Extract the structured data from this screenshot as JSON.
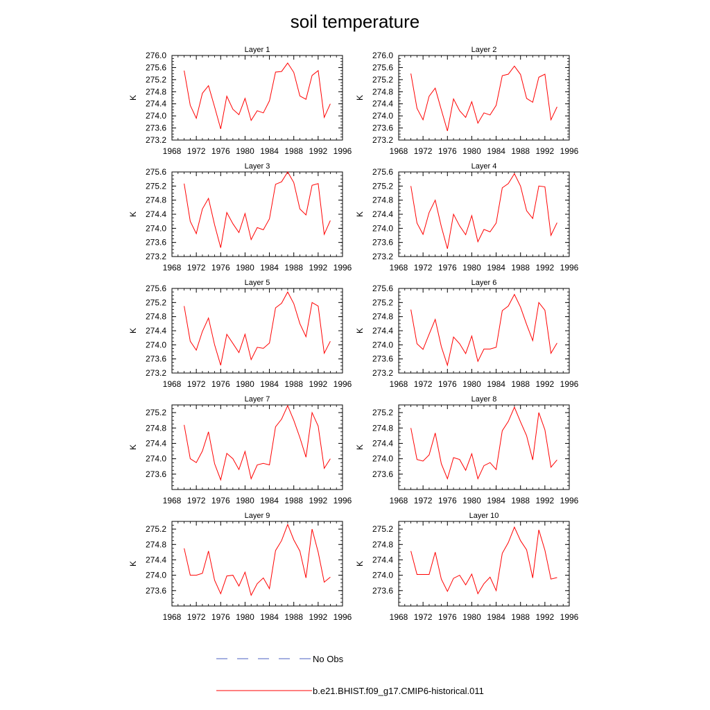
{
  "title": "soil temperature",
  "legend": {
    "placement": "bottom-center",
    "entries": [
      {
        "label": "No Obs",
        "color": "#4a5fc1",
        "style": "dashed"
      },
      {
        "label": "b.e21.BHIST.f09_g17.CMIP6-historical.011",
        "color": "#ff0000",
        "style": "solid"
      }
    ]
  },
  "chart_data": [
    {
      "type": "line",
      "title": "Layer 1",
      "ylabel": "K",
      "xlim": [
        1968,
        1996
      ],
      "ylim": [
        273.2,
        276.0
      ],
      "xticks": [
        "1968",
        "1972",
        "1976",
        "1980",
        "1984",
        "1988",
        "1992",
        "1996"
      ],
      "yticks": [
        "273.2",
        "273.6",
        "274.0",
        "274.4",
        "274.8",
        "275.2",
        "275.6",
        "276.0"
      ],
      "series": [
        {
          "name": "b.e21.BHIST.f09_g17.CMIP6-historical.011",
          "color": "#ff0000",
          "x": [
            1970,
            1971,
            1972,
            1973,
            1974,
            1975,
            1976,
            1977,
            1978,
            1979,
            1980,
            1981,
            1982,
            1983,
            1984,
            1985,
            1986,
            1987,
            1988,
            1989,
            1990,
            1991,
            1992,
            1993,
            1994
          ],
          "y": [
            275.5,
            274.35,
            273.92,
            274.75,
            275.0,
            274.3,
            273.57,
            274.65,
            274.22,
            274.04,
            274.58,
            273.85,
            274.17,
            274.1,
            274.5,
            275.45,
            275.47,
            275.75,
            275.44,
            274.66,
            274.55,
            275.34,
            275.5,
            273.95,
            274.4
          ]
        }
      ]
    },
    {
      "type": "line",
      "title": "Layer 2",
      "ylabel": "K",
      "xlim": [
        1968,
        1996
      ],
      "ylim": [
        273.2,
        276.0
      ],
      "xticks": [
        "1968",
        "1972",
        "1976",
        "1980",
        "1984",
        "1988",
        "1992",
        "1996"
      ],
      "yticks": [
        "273.2",
        "273.6",
        "274.0",
        "274.4",
        "274.8",
        "275.2",
        "275.6",
        "276.0"
      ],
      "series": [
        {
          "name": "b.e21.BHIST.f09_g17.CMIP6-historical.011",
          "color": "#ff0000",
          "x": [
            1970,
            1971,
            1972,
            1973,
            1974,
            1975,
            1976,
            1977,
            1978,
            1979,
            1980,
            1981,
            1982,
            1983,
            1984,
            1985,
            1986,
            1987,
            1988,
            1989,
            1990,
            1991,
            1992,
            1993,
            1994
          ],
          "y": [
            275.4,
            274.25,
            273.87,
            274.65,
            274.92,
            274.2,
            273.5,
            274.56,
            274.17,
            273.95,
            274.47,
            273.76,
            274.1,
            274.03,
            274.35,
            275.33,
            275.38,
            275.65,
            275.37,
            274.58,
            274.45,
            275.28,
            275.38,
            273.87,
            274.3
          ]
        }
      ]
    },
    {
      "type": "line",
      "title": "Layer 3",
      "ylabel": "K",
      "xlim": [
        1968,
        1996
      ],
      "ylim": [
        273.2,
        275.6
      ],
      "xticks": [
        "1968",
        "1972",
        "1976",
        "1980",
        "1984",
        "1988",
        "1992",
        "1996"
      ],
      "yticks": [
        "273.2",
        "273.6",
        "274.0",
        "274.4",
        "274.8",
        "275.2",
        "275.6"
      ],
      "series": [
        {
          "name": "b.e21.BHIST.f09_g17.CMIP6-historical.011",
          "color": "#ff0000",
          "x": [
            1970,
            1971,
            1972,
            1973,
            1974,
            1975,
            1976,
            1977,
            1978,
            1979,
            1980,
            1981,
            1982,
            1983,
            1984,
            1985,
            1986,
            1987,
            1988,
            1989,
            1990,
            1991,
            1992,
            1993,
            1994
          ],
          "y": [
            275.27,
            274.2,
            273.85,
            274.55,
            274.85,
            274.1,
            273.45,
            274.45,
            274.13,
            273.88,
            274.42,
            273.68,
            274.02,
            273.96,
            274.27,
            275.25,
            275.32,
            275.6,
            275.3,
            274.55,
            274.38,
            275.22,
            275.27,
            273.83,
            274.22
          ]
        }
      ]
    },
    {
      "type": "line",
      "title": "Layer 4",
      "ylabel": "K",
      "xlim": [
        1968,
        1996
      ],
      "ylim": [
        273.2,
        275.6
      ],
      "xticks": [
        "1968",
        "1972",
        "1976",
        "1980",
        "1984",
        "1988",
        "1992",
        "1996"
      ],
      "yticks": [
        "273.2",
        "273.6",
        "274.0",
        "274.4",
        "274.8",
        "275.2",
        "275.6"
      ],
      "series": [
        {
          "name": "b.e21.BHIST.f09_g17.CMIP6-historical.011",
          "color": "#ff0000",
          "x": [
            1970,
            1971,
            1972,
            1973,
            1974,
            1975,
            1976,
            1977,
            1978,
            1979,
            1980,
            1981,
            1982,
            1983,
            1984,
            1985,
            1986,
            1987,
            1988,
            1989,
            1990,
            1991,
            1992,
            1993,
            1994
          ],
          "y": [
            275.2,
            274.15,
            273.83,
            274.45,
            274.8,
            274.05,
            273.42,
            274.4,
            274.07,
            273.82,
            274.36,
            273.62,
            273.97,
            273.9,
            274.15,
            275.15,
            275.27,
            275.55,
            275.2,
            274.5,
            274.28,
            275.2,
            275.18,
            273.8,
            274.16
          ]
        }
      ]
    },
    {
      "type": "line",
      "title": "Layer 5",
      "ylabel": "K",
      "xlim": [
        1968,
        1996
      ],
      "ylim": [
        273.2,
        275.6
      ],
      "xticks": [
        "1968",
        "1972",
        "1976",
        "1980",
        "1984",
        "1988",
        "1992",
        "1996"
      ],
      "yticks": [
        "273.2",
        "273.6",
        "274.0",
        "274.4",
        "274.8",
        "275.2",
        "275.6"
      ],
      "series": [
        {
          "name": "b.e21.BHIST.f09_g17.CMIP6-historical.011",
          "color": "#ff0000",
          "x": [
            1970,
            1971,
            1972,
            1973,
            1974,
            1975,
            1976,
            1977,
            1978,
            1979,
            1980,
            1981,
            1982,
            1983,
            1984,
            1985,
            1986,
            1987,
            1988,
            1989,
            1990,
            1991,
            1992,
            1993,
            1994
          ],
          "y": [
            275.1,
            274.1,
            273.85,
            274.38,
            274.76,
            274.0,
            273.42,
            274.3,
            274.04,
            273.78,
            274.3,
            273.58,
            273.93,
            273.9,
            274.05,
            275.05,
            275.18,
            275.5,
            275.17,
            274.6,
            274.23,
            275.2,
            275.1,
            273.76,
            274.1
          ]
        }
      ]
    },
    {
      "type": "line",
      "title": "Layer 6",
      "ylabel": "K",
      "xlim": [
        1968,
        1996
      ],
      "ylim": [
        273.2,
        275.6
      ],
      "xticks": [
        "1968",
        "1972",
        "1976",
        "1980",
        "1984",
        "1988",
        "1992",
        "1996"
      ],
      "yticks": [
        "273.2",
        "273.6",
        "274.0",
        "274.4",
        "274.8",
        "275.2",
        "275.6"
      ],
      "series": [
        {
          "name": "b.e21.BHIST.f09_g17.CMIP6-historical.011",
          "color": "#ff0000",
          "x": [
            1970,
            1971,
            1972,
            1973,
            1974,
            1975,
            1976,
            1977,
            1978,
            1979,
            1980,
            1981,
            1982,
            1983,
            1984,
            1985,
            1986,
            1987,
            1988,
            1989,
            1990,
            1991,
            1992,
            1993,
            1994
          ],
          "y": [
            275.0,
            274.03,
            273.87,
            274.3,
            274.72,
            273.95,
            273.42,
            274.22,
            274.03,
            273.75,
            274.25,
            273.53,
            273.88,
            273.88,
            273.93,
            274.97,
            275.1,
            275.43,
            275.07,
            274.58,
            274.12,
            275.2,
            274.98,
            273.76,
            274.05
          ]
        }
      ]
    },
    {
      "type": "line",
      "title": "Layer 7",
      "ylabel": "K",
      "xlim": [
        1968,
        1996
      ],
      "ylim": [
        273.2,
        275.4
      ],
      "xticks": [
        "1968",
        "1972",
        "1976",
        "1980",
        "1984",
        "1988",
        "1992",
        "1996"
      ],
      "yticks": [
        "273.6",
        "274.0",
        "274.4",
        "274.8",
        "275.2"
      ],
      "series": [
        {
          "name": "b.e21.BHIST.f09_g17.CMIP6-historical.011",
          "color": "#ff0000",
          "x": [
            1970,
            1971,
            1972,
            1973,
            1974,
            1975,
            1976,
            1977,
            1978,
            1979,
            1980,
            1981,
            1982,
            1983,
            1984,
            1985,
            1986,
            1987,
            1988,
            1989,
            1990,
            1991,
            1992,
            1993,
            1994
          ],
          "y": [
            274.88,
            274.0,
            273.9,
            274.2,
            274.7,
            273.87,
            273.45,
            274.14,
            274.0,
            273.72,
            274.19,
            273.48,
            273.84,
            273.88,
            273.84,
            274.83,
            275.03,
            275.38,
            275.0,
            274.55,
            274.04,
            275.2,
            274.85,
            273.75,
            274.0
          ]
        }
      ]
    },
    {
      "type": "line",
      "title": "Layer 8",
      "ylabel": "K",
      "xlim": [
        1968,
        1996
      ],
      "ylim": [
        273.2,
        275.4
      ],
      "xticks": [
        "1968",
        "1972",
        "1976",
        "1980",
        "1984",
        "1988",
        "1992",
        "1996"
      ],
      "yticks": [
        "273.6",
        "274.0",
        "274.4",
        "274.8",
        "275.2"
      ],
      "series": [
        {
          "name": "b.e21.BHIST.f09_g17.CMIP6-historical.011",
          "color": "#ff0000",
          "x": [
            1970,
            1971,
            1972,
            1973,
            1974,
            1975,
            1976,
            1977,
            1978,
            1979,
            1980,
            1981,
            1982,
            1983,
            1984,
            1985,
            1986,
            1987,
            1988,
            1989,
            1990,
            1991,
            1992,
            1993,
            1994
          ],
          "y": [
            274.8,
            273.98,
            273.94,
            274.1,
            274.67,
            273.87,
            273.48,
            274.03,
            273.98,
            273.7,
            274.13,
            273.48,
            273.82,
            273.9,
            273.72,
            274.73,
            274.97,
            275.34,
            274.96,
            274.6,
            273.97,
            275.2,
            274.75,
            273.78,
            273.97
          ]
        }
      ]
    },
    {
      "type": "line",
      "title": "Layer 9",
      "ylabel": "K",
      "xlim": [
        1968,
        1996
      ],
      "ylim": [
        273.2,
        275.4
      ],
      "xticks": [
        "1968",
        "1972",
        "1976",
        "1980",
        "1984",
        "1988",
        "1992",
        "1996"
      ],
      "yticks": [
        "273.6",
        "274.0",
        "274.4",
        "274.8",
        "275.2"
      ],
      "series": [
        {
          "name": "b.e21.BHIST.f09_g17.CMIP6-historical.011",
          "color": "#ff0000",
          "x": [
            1970,
            1971,
            1972,
            1973,
            1974,
            1975,
            1976,
            1977,
            1978,
            1979,
            1980,
            1981,
            1982,
            1983,
            1984,
            1985,
            1986,
            1987,
            1988,
            1989,
            1990,
            1991,
            1992,
            1993,
            1994
          ],
          "y": [
            274.7,
            274.0,
            274.0,
            274.05,
            274.63,
            273.87,
            273.52,
            273.98,
            274.0,
            273.72,
            274.08,
            273.48,
            273.78,
            273.93,
            273.65,
            274.64,
            274.9,
            275.32,
            274.92,
            274.63,
            273.93,
            275.2,
            274.6,
            273.82,
            273.95
          ]
        }
      ]
    },
    {
      "type": "line",
      "title": "Layer 10",
      "ylabel": "K",
      "xlim": [
        1968,
        1996
      ],
      "ylim": [
        273.2,
        275.4
      ],
      "xticks": [
        "1968",
        "1972",
        "1976",
        "1980",
        "1984",
        "1988",
        "1992",
        "1996"
      ],
      "yticks": [
        "273.6",
        "274.0",
        "274.4",
        "274.8",
        "275.2"
      ],
      "series": [
        {
          "name": "b.e21.BHIST.f09_g17.CMIP6-historical.011",
          "color": "#ff0000",
          "x": [
            1970,
            1971,
            1972,
            1973,
            1974,
            1975,
            1976,
            1977,
            1978,
            1979,
            1980,
            1981,
            1982,
            1983,
            1984,
            1985,
            1986,
            1987,
            1988,
            1989,
            1990,
            1991,
            1992,
            1993,
            1994
          ],
          "y": [
            274.63,
            274.02,
            274.02,
            274.02,
            274.6,
            273.9,
            273.58,
            273.92,
            274.0,
            273.75,
            274.03,
            273.52,
            273.78,
            273.95,
            273.6,
            274.57,
            274.85,
            275.25,
            274.9,
            274.66,
            273.93,
            275.18,
            274.65,
            273.9,
            273.94
          ]
        }
      ]
    }
  ]
}
